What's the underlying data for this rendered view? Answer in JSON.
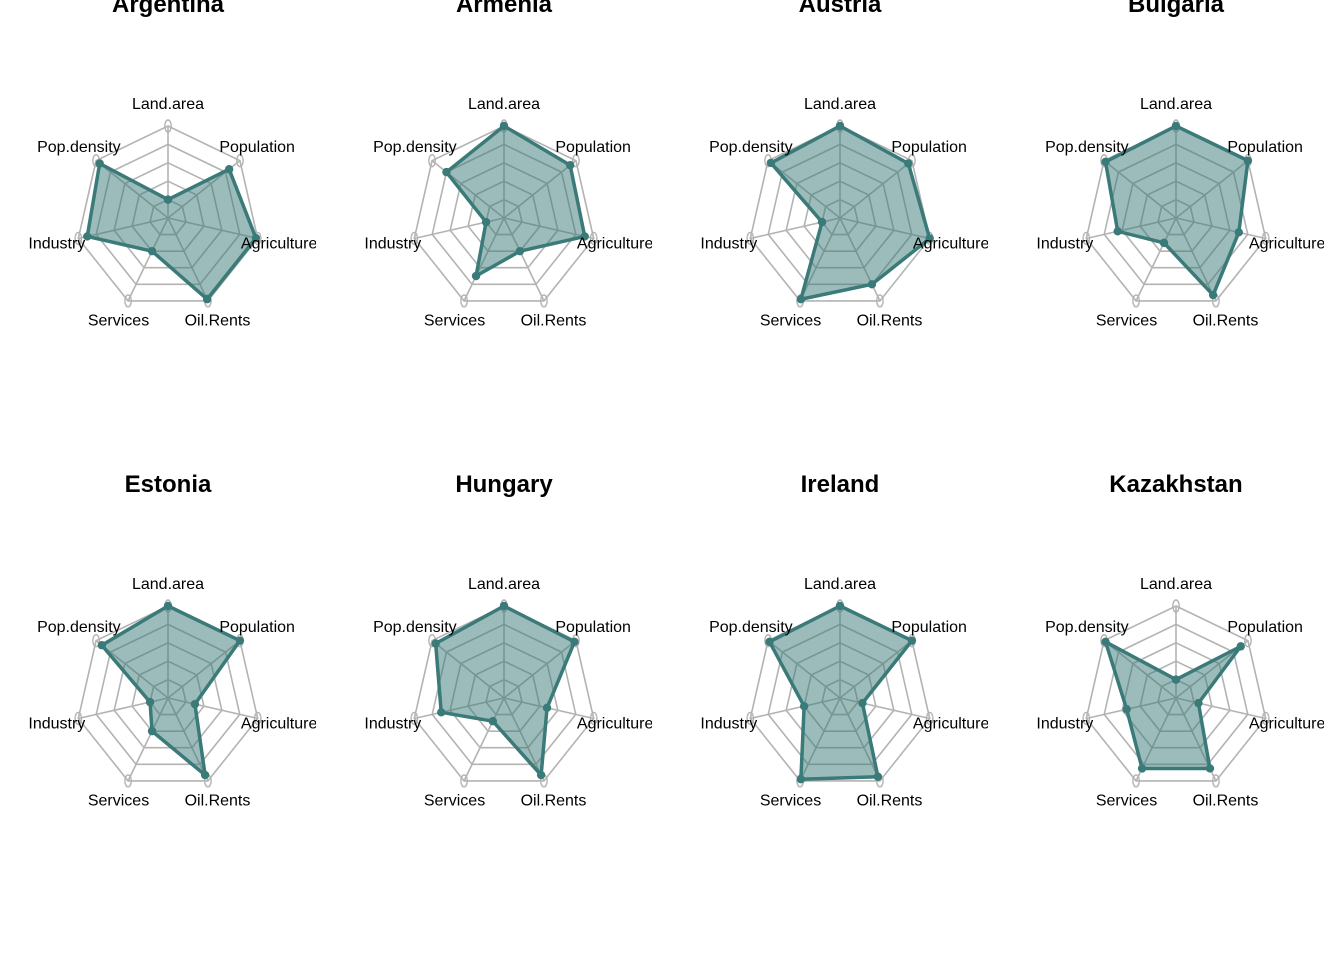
{
  "chart_data": {
    "type": "radar",
    "axes": [
      "Land.area",
      "Population",
      "Agriculture",
      "Oil.Rents",
      "Services",
      "Industry",
      "Pop.density"
    ],
    "scale_range": [
      0,
      1
    ],
    "grid_levels": 5,
    "colors": {
      "line": "#3a7a78",
      "fill": "#3a7a78",
      "grid": "#b3b3b3"
    },
    "panels": [
      {
        "title": "Argentina",
        "values": [
          0.2,
          0.85,
          0.98,
          0.98,
          0.4,
          0.9,
          0.95
        ]
      },
      {
        "title": "Armenia",
        "values": [
          1.0,
          0.92,
          0.9,
          0.4,
          0.7,
          0.2,
          0.8
        ]
      },
      {
        "title": "Austria",
        "values": [
          1.0,
          0.95,
          1.0,
          0.8,
          0.98,
          0.2,
          0.96
        ]
      },
      {
        "title": "Bulgaria",
        "values": [
          1.0,
          1.0,
          0.7,
          0.93,
          0.3,
          0.65,
          0.98
        ]
      },
      {
        "title": "Estonia",
        "values": [
          1.0,
          1.0,
          0.3,
          0.93,
          0.4,
          0.2,
          0.92
        ]
      },
      {
        "title": "Hungary",
        "values": [
          1.0,
          0.98,
          0.48,
          0.93,
          0.28,
          0.7,
          0.95
        ]
      },
      {
        "title": "Ireland",
        "values": [
          1.0,
          1.0,
          0.25,
          0.95,
          0.98,
          0.4,
          0.98
        ]
      },
      {
        "title": "Kazakhstan",
        "values": [
          0.2,
          0.9,
          0.25,
          0.85,
          0.85,
          0.55,
          0.98
        ]
      }
    ]
  }
}
